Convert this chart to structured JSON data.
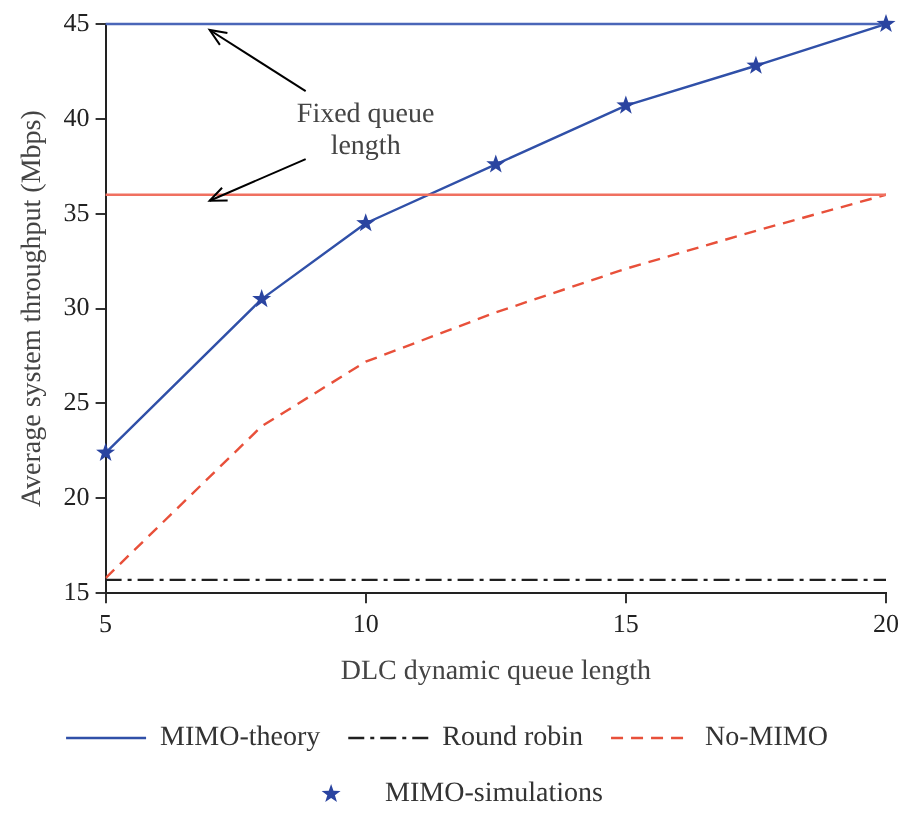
{
  "chart_data": {
    "type": "line",
    "xlabel": "DLC dynamic queue length",
    "ylabel": "Average system throughput (Mbps)",
    "x": [
      5,
      8,
      10,
      12.5,
      15,
      17.5,
      20
    ],
    "series": [
      {
        "name": "MIMO-theory",
        "type": "line",
        "color": "#3050a8",
        "line_style": "solid",
        "marker": "none",
        "values": [
          22.4,
          30.5,
          34.5,
          37.6,
          40.7,
          42.8,
          45
        ]
      },
      {
        "name": "Round robin",
        "type": "line",
        "color": "#202020",
        "line_style": "dashdot",
        "marker": "none",
        "x": [
          5,
          20
        ],
        "values": [
          15.7,
          15.7
        ]
      },
      {
        "name": "No-MIMO",
        "type": "line",
        "color": "#e8503a",
        "line_style": "dashed",
        "marker": "none",
        "values": [
          15.8,
          23.8,
          27.2,
          29.8,
          32.1,
          34.1,
          36
        ]
      },
      {
        "name": "MIMO-simulations",
        "type": "scatter",
        "color": "#2a44a0",
        "marker": "star",
        "values": [
          22.4,
          30.5,
          34.5,
          37.6,
          40.7,
          42.8,
          45
        ]
      }
    ],
    "ref_lines": [
      {
        "axis": "y",
        "value": 45,
        "color": "#4a66b8"
      },
      {
        "axis": "y",
        "value": 36,
        "color": "#f07060"
      }
    ],
    "annotations": [
      {
        "text": "Fixed queue length",
        "x": 7,
        "y": 45
      }
    ],
    "xlim": [
      5,
      20
    ],
    "xticks": [
      5,
      10,
      15,
      20
    ],
    "ylim": [
      15,
      45
    ],
    "yticks": [
      15,
      20,
      25,
      30,
      35,
      40,
      45
    ],
    "grid": false,
    "legend": "bottom"
  }
}
